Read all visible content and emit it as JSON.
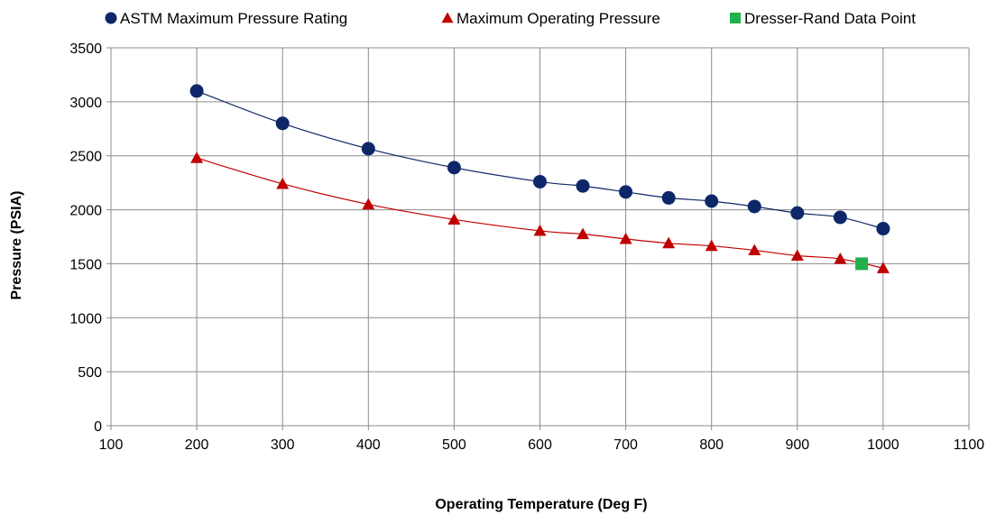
{
  "chart_data": {
    "type": "scatter",
    "title": "",
    "xlabel": "Operating Temperature (Deg F)",
    "ylabel": "Pressure (PSIA)",
    "xlim": [
      100,
      1100
    ],
    "ylim": [
      0,
      3500
    ],
    "xticks": [
      100,
      200,
      300,
      400,
      500,
      600,
      700,
      800,
      900,
      1000,
      1100
    ],
    "yticks": [
      0,
      500,
      1000,
      1500,
      2000,
      2500,
      3000,
      3500
    ],
    "grid": true,
    "legend_position": "top",
    "series": [
      {
        "name": "ASTM Maximum Pressure Rating",
        "marker": "circle",
        "color": "#0e2769",
        "trendline": true,
        "x": [
          200,
          300,
          400,
          500,
          600,
          650,
          700,
          750,
          800,
          850,
          900,
          950,
          1000
        ],
        "y": [
          3100,
          2800,
          2565,
          2390,
          2260,
          2220,
          2165,
          2110,
          2080,
          2030,
          1970,
          1930,
          1825
        ]
      },
      {
        "name": "Maximum Operating Pressure",
        "marker": "triangle",
        "color": "#c00000",
        "trendline": true,
        "x": [
          200,
          300,
          400,
          500,
          600,
          650,
          700,
          750,
          800,
          850,
          900,
          950,
          1000
        ],
        "y": [
          2480,
          2240,
          2050,
          1910,
          1805,
          1775,
          1730,
          1690,
          1665,
          1625,
          1575,
          1545,
          1460
        ]
      },
      {
        "name": "Dresser-Rand Data Point",
        "marker": "square",
        "color": "#21b04b",
        "trendline": false,
        "x": [
          975
        ],
        "y": [
          1500
        ]
      }
    ]
  }
}
